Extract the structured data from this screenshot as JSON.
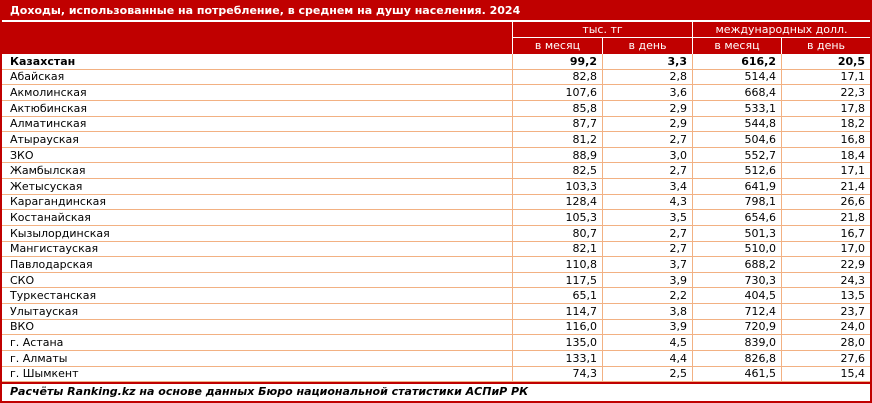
{
  "colors": {
    "accent": "#C00000",
    "grid": "#F2B183",
    "header_text": "#FFFFFF",
    "body_text": "#000000"
  },
  "chart_data": {
    "type": "table",
    "title": "Доходы, использованные на потребление, в среднем на душу населения. 2024",
    "column_groups": [
      {
        "label": "тыс. тг",
        "span": 2
      },
      {
        "label": "международных долл.",
        "span": 2
      }
    ],
    "columns": [
      "в месяц",
      "в день",
      "в месяц",
      "в день"
    ],
    "rows": [
      {
        "name": "Казахстан",
        "values": [
          "99,2",
          "3,3",
          "616,2",
          "20,5"
        ],
        "bold": true
      },
      {
        "name": "Абайская",
        "values": [
          "82,8",
          "2,8",
          "514,4",
          "17,1"
        ],
        "bold": false
      },
      {
        "name": "Акмолинская",
        "values": [
          "107,6",
          "3,6",
          "668,4",
          "22,3"
        ],
        "bold": false
      },
      {
        "name": "Актюбинская",
        "values": [
          "85,8",
          "2,9",
          "533,1",
          "17,8"
        ],
        "bold": false
      },
      {
        "name": "Алматинская",
        "values": [
          "87,7",
          "2,9",
          "544,8",
          "18,2"
        ],
        "bold": false
      },
      {
        "name": "Атырауская",
        "values": [
          "81,2",
          "2,7",
          "504,6",
          "16,8"
        ],
        "bold": false
      },
      {
        "name": "ЗКО",
        "values": [
          "88,9",
          "3,0",
          "552,7",
          "18,4"
        ],
        "bold": false
      },
      {
        "name": "Жамбылская",
        "values": [
          "82,5",
          "2,7",
          "512,6",
          "17,1"
        ],
        "bold": false
      },
      {
        "name": "Жетысуская",
        "values": [
          "103,3",
          "3,4",
          "641,9",
          "21,4"
        ],
        "bold": false
      },
      {
        "name": "Карагандинская",
        "values": [
          "128,4",
          "4,3",
          "798,1",
          "26,6"
        ],
        "bold": false
      },
      {
        "name": "Костанайская",
        "values": [
          "105,3",
          "3,5",
          "654,6",
          "21,8"
        ],
        "bold": false
      },
      {
        "name": "Кызылординская",
        "values": [
          "80,7",
          "2,7",
          "501,3",
          "16,7"
        ],
        "bold": false
      },
      {
        "name": "Мангистауская",
        "values": [
          "82,1",
          "2,7",
          "510,0",
          "17,0"
        ],
        "bold": false
      },
      {
        "name": "Павлодарская",
        "values": [
          "110,8",
          "3,7",
          "688,2",
          "22,9"
        ],
        "bold": false
      },
      {
        "name": "СКО",
        "values": [
          "117,5",
          "3,9",
          "730,3",
          "24,3"
        ],
        "bold": false
      },
      {
        "name": "Туркестанская",
        "values": [
          "65,1",
          "2,2",
          "404,5",
          "13,5"
        ],
        "bold": false
      },
      {
        "name": "Улытауская",
        "values": [
          "114,7",
          "3,8",
          "712,4",
          "23,7"
        ],
        "bold": false
      },
      {
        "name": "ВКО",
        "values": [
          "116,0",
          "3,9",
          "720,9",
          "24,0"
        ],
        "bold": false
      },
      {
        "name": "г. Астана",
        "values": [
          "135,0",
          "4,5",
          "839,0",
          "28,0"
        ],
        "bold": false
      },
      {
        "name": "г. Алматы",
        "values": [
          "133,1",
          "4,4",
          "826,8",
          "27,6"
        ],
        "bold": false
      },
      {
        "name": "г. Шымкент",
        "values": [
          "74,3",
          "2,5",
          "461,5",
          "15,4"
        ],
        "bold": false
      }
    ],
    "source_note": "Расчёты Ranking.kz на основе данных Бюро национальной статистики АСПиР РК",
    "layout": {
      "grid": "on",
      "value_align": "right",
      "decimal_separator": ","
    }
  }
}
